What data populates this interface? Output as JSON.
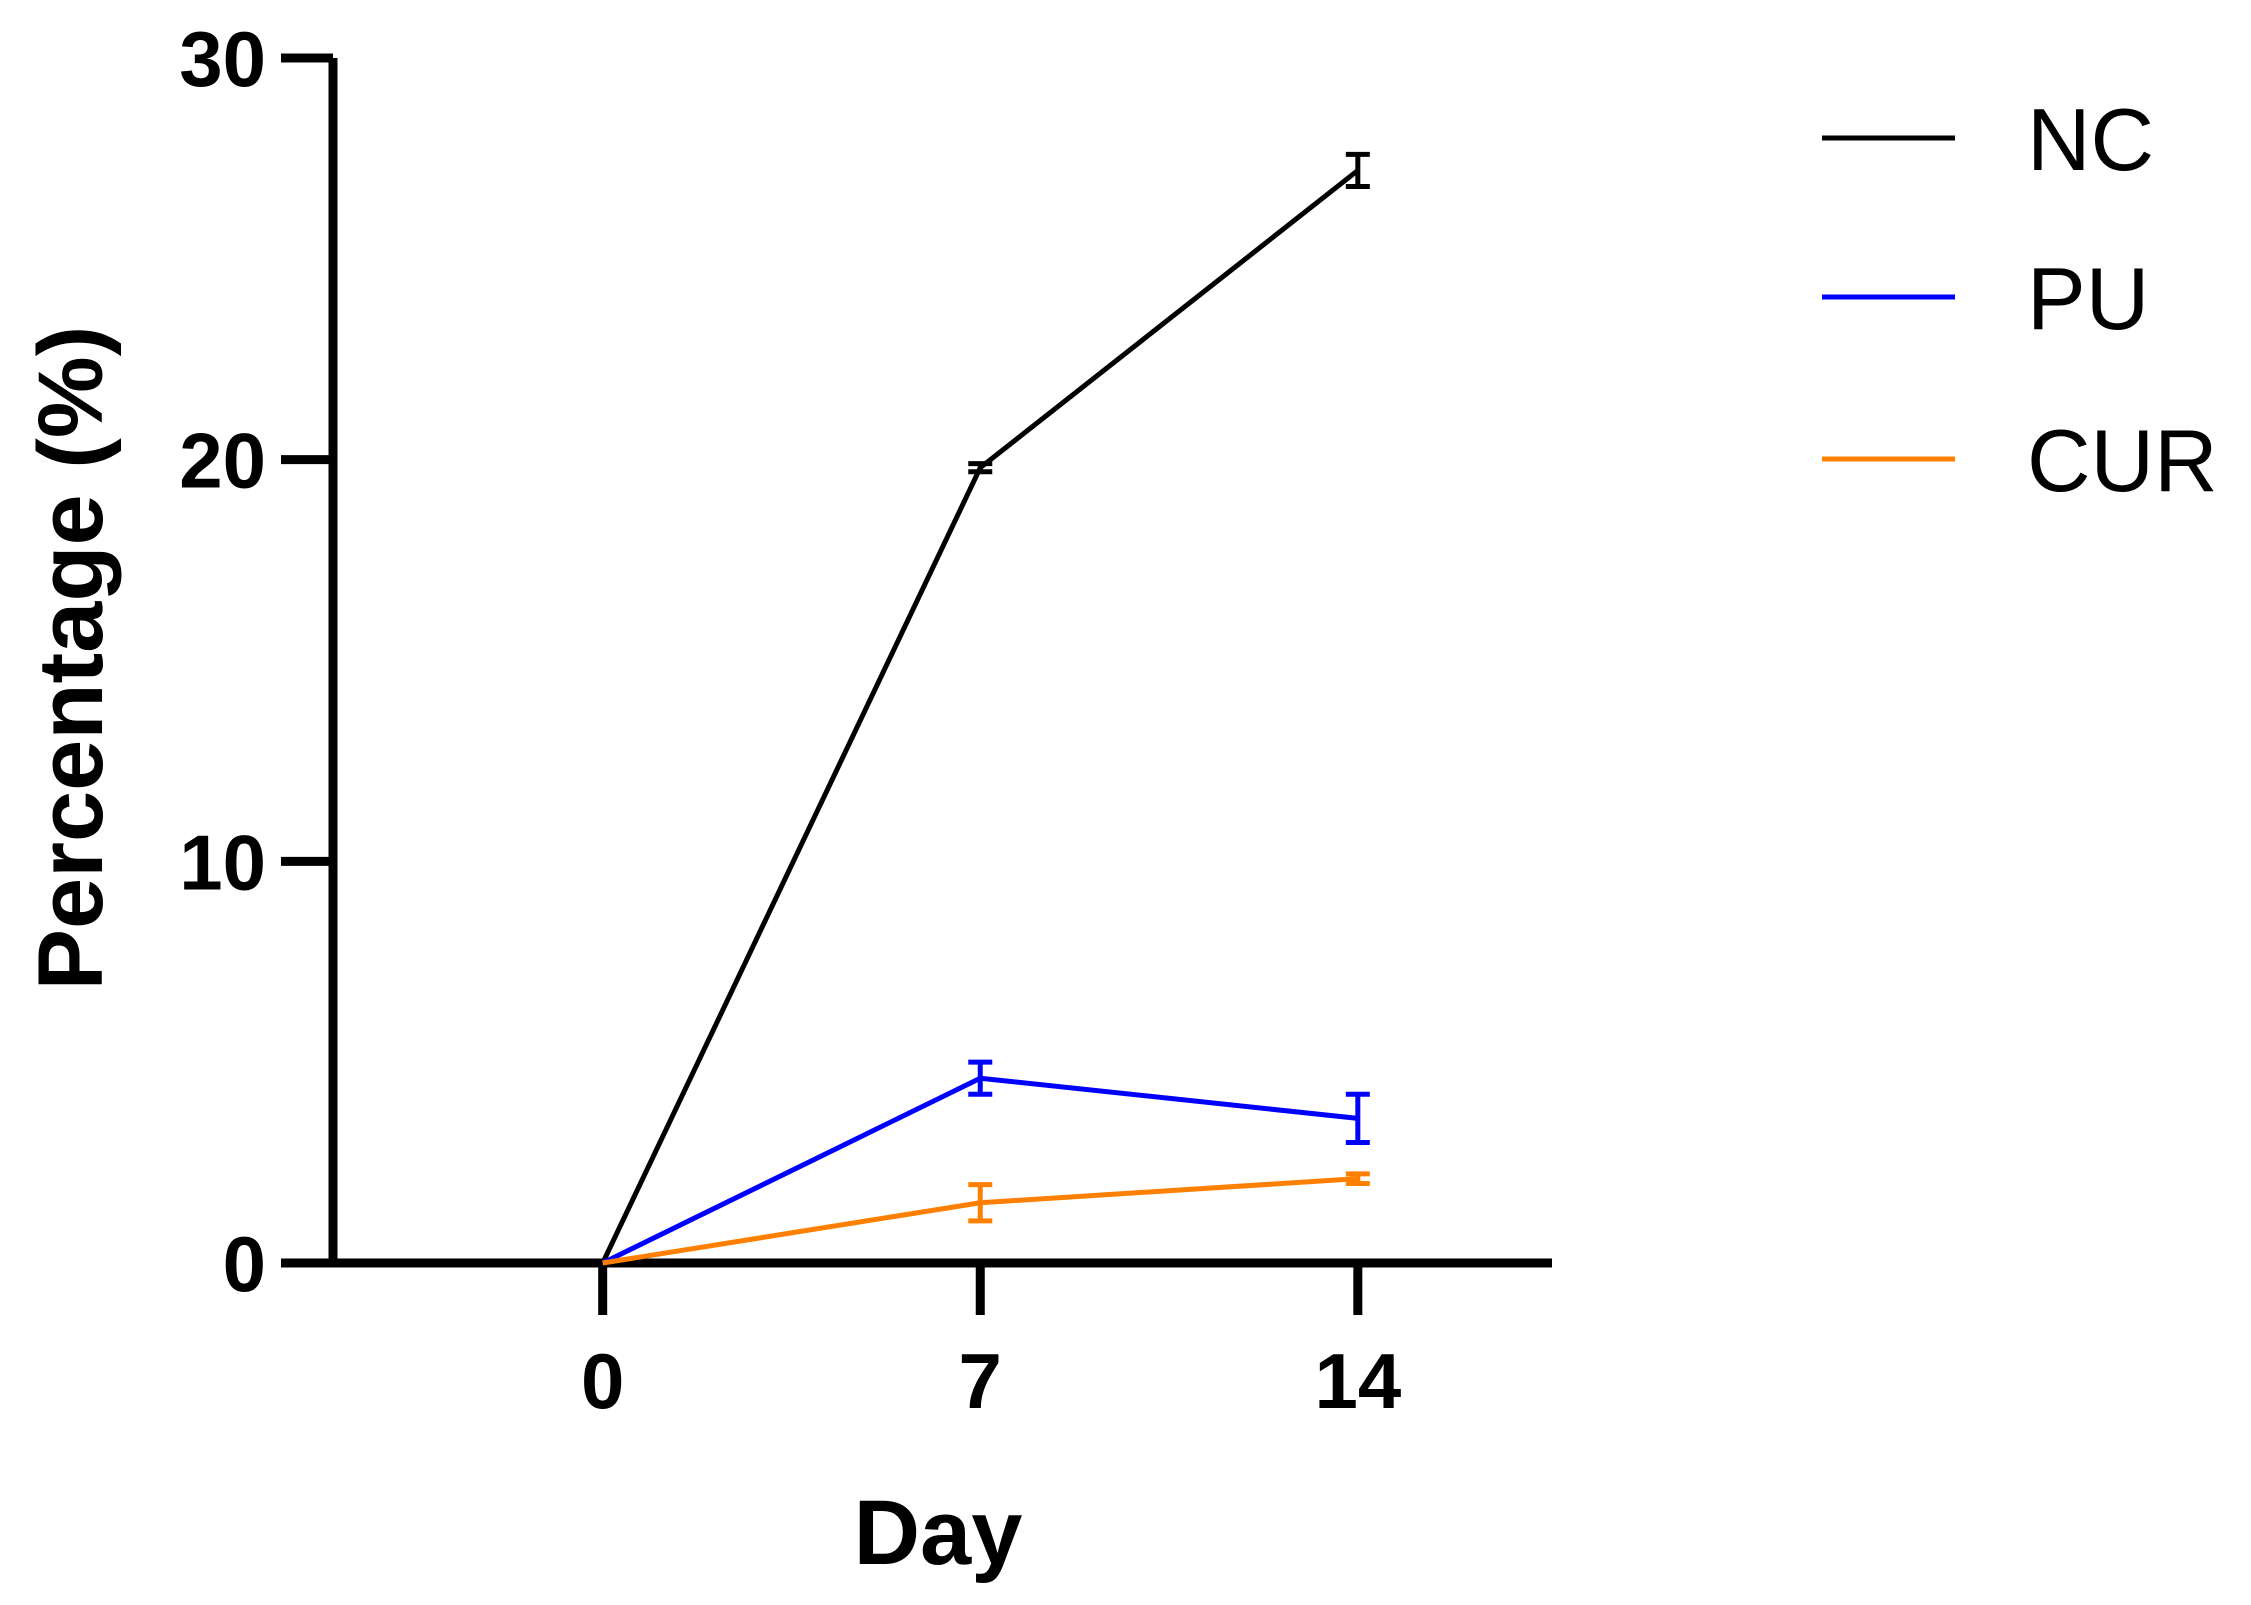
{
  "chart_data": {
    "type": "line",
    "xlabel": "Day",
    "ylabel": "Percentage (%)",
    "x": [
      0,
      7,
      14
    ],
    "x_tick_labels": [
      "0",
      "7",
      "14"
    ],
    "xlim": [
      -5,
      17.6
    ],
    "ylim": [
      0,
      30
    ],
    "y_ticks": [
      0,
      10,
      20,
      30
    ],
    "y_tick_labels": [
      "0",
      "10",
      "20",
      "30"
    ],
    "grid": false,
    "legend_position": "top-right",
    "series": [
      {
        "name": "NC",
        "color": "#000000",
        "values": [
          0,
          19.8,
          27.2
        ],
        "errors": [
          0,
          0.1,
          0.4
        ]
      },
      {
        "name": "PU",
        "color": "#0000ff",
        "values": [
          0,
          4.6,
          3.6
        ],
        "errors": [
          0,
          0.4,
          0.6
        ]
      },
      {
        "name": "CUR",
        "color": "#ff8000",
        "values": [
          0,
          1.5,
          2.1
        ],
        "errors": [
          0,
          0.45,
          0.12
        ]
      }
    ]
  }
}
